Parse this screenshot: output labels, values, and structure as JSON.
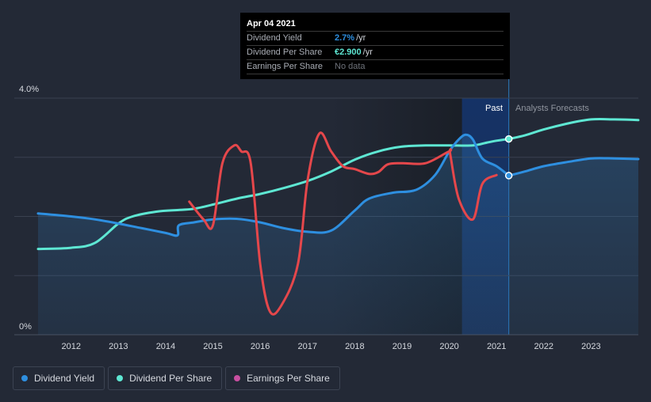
{
  "chart_data": {
    "type": "line",
    "title": "",
    "y_tick_labels": [
      "4.0%",
      "0%"
    ],
    "ylim": [
      0,
      4.0
    ],
    "xlim": [
      2011.3,
      2024.0
    ],
    "x_tick_labels": [
      "2012",
      "2013",
      "2014",
      "2015",
      "2016",
      "2017",
      "2018",
      "2019",
      "2020",
      "2021",
      "2022",
      "2023"
    ],
    "x_ticks": [
      2012,
      2013,
      2014,
      2015,
      2016,
      2017,
      2018,
      2019,
      2020,
      2021,
      2022,
      2023
    ],
    "past_label": "Past",
    "forecast_label": "Analysts Forecasts",
    "past_start": 2020.27,
    "forecast_start": 2021.26,
    "series": [
      {
        "name": "Dividend Yield",
        "color": "#2e8fe0",
        "x": [
          2011.3,
          2012.0,
          2012.5,
          2013.0,
          2013.5,
          2014.0,
          2014.25,
          2014.28,
          2014.6,
          2015.0,
          2015.5,
          2016.0,
          2016.5,
          2017.0,
          2017.5,
          2018.0,
          2018.3,
          2018.8,
          2019.3,
          2019.7,
          2020.0,
          2020.2,
          2020.35,
          2020.5,
          2020.7,
          2021.0,
          2021.26
        ],
        "values": [
          2.05,
          2.0,
          1.95,
          1.88,
          1.8,
          1.72,
          1.68,
          1.85,
          1.9,
          1.95,
          1.96,
          1.9,
          1.8,
          1.74,
          1.76,
          2.1,
          2.3,
          2.4,
          2.45,
          2.7,
          3.1,
          3.3,
          3.38,
          3.3,
          2.98,
          2.85,
          2.69
        ]
      },
      {
        "name": "Dividend Yield Forecast",
        "color": "#2e8fe0",
        "x": [
          2021.26,
          2021.6,
          2022.0,
          2022.5,
          2023.0,
          2023.5,
          2024.0
        ],
        "values": [
          2.69,
          2.76,
          2.85,
          2.92,
          2.98,
          2.98,
          2.97
        ]
      },
      {
        "name": "Dividend Per Share",
        "color": "#5ee7d3",
        "x": [
          2011.3,
          2012.0,
          2012.5,
          2013.0,
          2013.3,
          2013.8,
          2014.3,
          2014.6,
          2015.0,
          2015.5,
          2016.0,
          2016.5,
          2017.0,
          2017.5,
          2018.0,
          2018.5,
          2019.0,
          2019.5,
          2020.0,
          2020.5,
          2020.8,
          2021.0,
          2021.26
        ],
        "values": [
          1.45,
          1.47,
          1.55,
          1.88,
          2.0,
          2.08,
          2.11,
          2.13,
          2.2,
          2.3,
          2.38,
          2.48,
          2.6,
          2.76,
          2.96,
          3.1,
          3.18,
          3.2,
          3.2,
          3.2,
          3.25,
          3.28,
          3.31
        ]
      },
      {
        "name": "Dividend Per Share Forecast",
        "color": "#5ee7d3",
        "x": [
          2021.26,
          2021.6,
          2022.0,
          2022.5,
          2023.0,
          2023.5,
          2024.0
        ],
        "values": [
          3.31,
          3.37,
          3.47,
          3.57,
          3.64,
          3.64,
          3.63
        ]
      },
      {
        "name": "Earnings Per Share",
        "color": "#e5474b",
        "x": [
          2014.5,
          2014.8,
          2015.0,
          2015.2,
          2015.45,
          2015.6,
          2015.8,
          2016.0,
          2016.2,
          2016.45,
          2016.8,
          2017.0,
          2017.25,
          2017.5,
          2017.75,
          2018.0,
          2018.3,
          2018.5,
          2018.7,
          2019.0,
          2019.5,
          2020.0,
          2020.02,
          2020.2,
          2020.5,
          2020.7,
          2021.0
        ],
        "values": [
          2.25,
          1.95,
          1.85,
          2.9,
          3.2,
          3.1,
          2.9,
          1.2,
          0.4,
          0.5,
          1.2,
          2.6,
          3.4,
          3.1,
          2.85,
          2.8,
          2.72,
          2.75,
          2.88,
          2.9,
          2.9,
          3.1,
          3.05,
          2.3,
          1.95,
          2.55,
          2.7
        ]
      }
    ],
    "markers": [
      {
        "series": "Dividend Yield",
        "x": 2021.26,
        "value": 2.69
      },
      {
        "series": "Dividend Per Share",
        "x": 2021.26,
        "value": 3.31
      }
    ]
  },
  "tooltip": {
    "date": "Apr 04 2021",
    "rows": [
      {
        "name": "Dividend Yield",
        "value": "2.7%",
        "unit": "/yr",
        "color": "#2e8fe0"
      },
      {
        "name": "Dividend Per Share",
        "value": "€2.900",
        "unit": "/yr",
        "color": "#5ee7d3"
      },
      {
        "name": "Earnings Per Share",
        "value": "No data",
        "unit": "",
        "color": "#6e727a"
      }
    ]
  },
  "legend": [
    {
      "label": "Dividend Yield",
      "color": "#2e8fe0"
    },
    {
      "label": "Dividend Per Share",
      "color": "#5ee7d3"
    },
    {
      "label": "Earnings Per Share",
      "color": "#c84fa0"
    }
  ]
}
